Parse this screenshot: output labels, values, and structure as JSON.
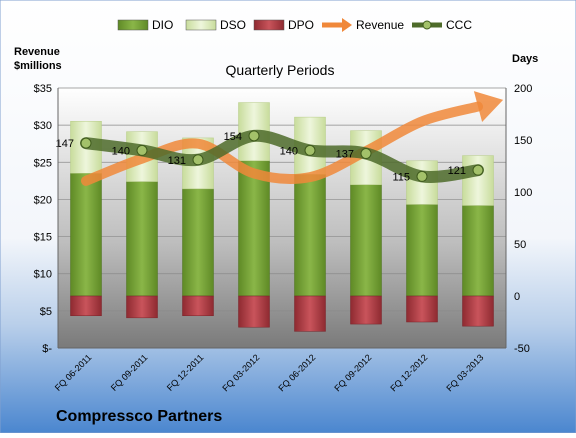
{
  "chart_data": {
    "type": "bar",
    "title": "Quarterly Periods",
    "company": "Compressco Partners",
    "left_axis_label": [
      "Revenue",
      "$millions"
    ],
    "right_axis_label": "Days",
    "left_axis_ticks": [
      "$-",
      "$5",
      "$10",
      "$15",
      "$20",
      "$25",
      "$30",
      "$35"
    ],
    "left_axis_range": [
      0,
      35
    ],
    "right_axis_ticks": [
      "-50",
      "0",
      "50",
      "100",
      "150",
      "200"
    ],
    "right_axis_range": [
      -50,
      200
    ],
    "grid": true,
    "legend_position": "top",
    "categories": [
      "FQ 06-2011",
      "FQ 09-2011",
      "FQ 12-2011",
      "FQ 03-2012",
      "FQ 06-2012",
      "FQ 09-2012",
      "FQ 12-2012",
      "FQ 03-2013"
    ],
    "series": [
      {
        "name": "DIO",
        "axis": "right",
        "color": "#7aa33a",
        "values": [
          118,
          110,
          103,
          130,
          117,
          107,
          88,
          87
        ]
      },
      {
        "name": "DSO",
        "axis": "right",
        "color": "#d7e8b4",
        "values": [
          50,
          48,
          49,
          56,
          55,
          52,
          42,
          48
        ]
      },
      {
        "name": "DPO",
        "axis": "right",
        "color": "#b5424a",
        "values": [
          -19,
          -21,
          -19,
          -30,
          -34,
          -27,
          -25,
          -29
        ]
      },
      {
        "name": "Revenue",
        "axis": "left",
        "color": "#f0883a",
        "values": [
          22.5,
          25.5,
          27.5,
          23.5,
          23.0,
          26.5,
          30.5,
          32.5
        ]
      },
      {
        "name": "CCC",
        "axis": "right",
        "color": "#4e6b2a",
        "values": [
          147,
          140,
          131,
          154,
          140,
          137,
          115,
          121
        ]
      }
    ],
    "data_labels": [
      "147",
      "140",
      "131",
      "154",
      "140",
      "137",
      "115",
      "121"
    ]
  }
}
